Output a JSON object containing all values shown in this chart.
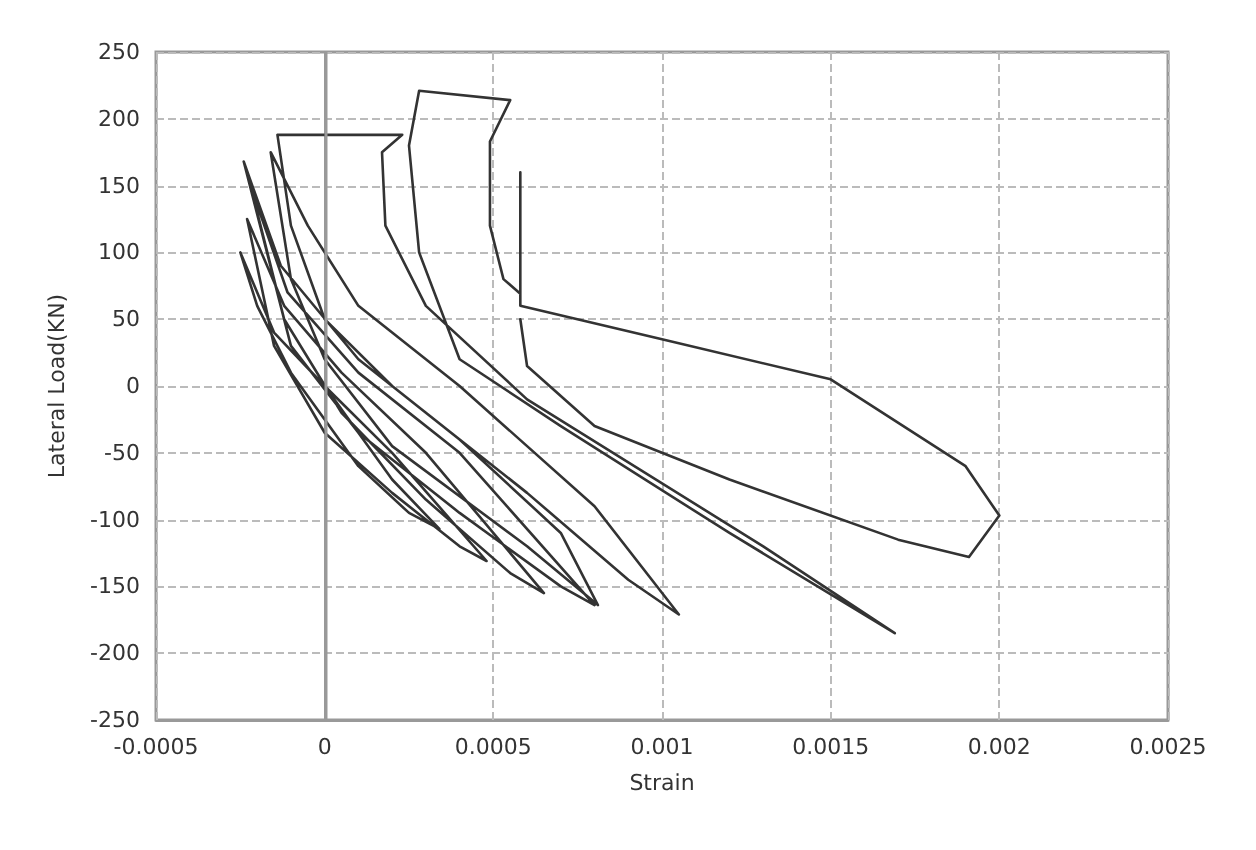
{
  "chart_data": {
    "type": "line",
    "xlabel": "Strain",
    "ylabel": "Lateral Load(KN)",
    "xlim": [
      -0.0005,
      0.0025
    ],
    "xticks": [
      -0.0005,
      0,
      0.0005,
      0.001,
      0.0015,
      0.002,
      0.0025
    ],
    "ylim": [
      -250,
      250
    ],
    "yticks": [
      -250,
      -200,
      -150,
      -100,
      -50,
      0,
      50,
      100,
      150,
      200,
      250
    ],
    "grid": true,
    "marker": "none",
    "line_style": "solid",
    "ref_lines": [
      {
        "axis": "x",
        "value": 0,
        "color": "#999999"
      }
    ],
    "series": [
      {
        "color": "#333333",
        "x": [
          0,
          0.0001,
          0.0002,
          0.00034,
          0.00025,
          0.0001,
          -0.0001,
          -0.0002,
          -0.00025,
          -0.00015,
          0,
          0.0002,
          0.00048,
          0.0004,
          0.0002,
          0,
          -0.00015,
          -0.00023,
          -0.00012,
          5e-05,
          0.0003,
          0.00065,
          0.00055,
          0.0003,
          5e-05,
          -0.00012,
          -0.00022,
          -0.00011,
          0.0001,
          0.0004,
          0.0008,
          0.0007,
          0.0004,
          0.0001,
          -0.0001,
          -0.00024,
          -0.00013,
          0.0001,
          0.0004,
          0.0007,
          0.00081,
          0.0006,
          0.0002,
          0,
          -0.0001,
          -0.00016,
          -5e-05,
          0.0001,
          0.0004,
          0.0008,
          0.00105,
          0.0009,
          0.0006,
          0.0002,
          0,
          -0.0001,
          -0.00014,
          0.00023,
          0.00017,
          0.00018,
          0.0003,
          0.0006,
          0.0013,
          0.00169,
          0.0012,
          0.0007,
          0.0004,
          0.00028,
          0.00025,
          0.00028,
          0.00055,
          0.00049,
          0.00049,
          0.00053,
          0.00058,
          0.00058,
          0.00058,
          0.001,
          0.0015,
          0.0019,
          0.002,
          0.00191,
          0.0017,
          0.0012,
          0.0008,
          0.0006,
          0.00058
        ],
        "values": [
          0,
          -35,
          -70,
          -107,
          -95,
          -60,
          10,
          60,
          100,
          40,
          0,
          -50,
          -131,
          -120,
          -80,
          -35,
          30,
          125,
          60,
          10,
          -50,
          -155,
          -140,
          -85,
          -20,
          50,
          150,
          70,
          10,
          -50,
          -164,
          -150,
          -95,
          -35,
          30,
          168,
          90,
          20,
          -40,
          -110,
          -164,
          -120,
          -45,
          20,
          80,
          175,
          120,
          60,
          0,
          -90,
          -171,
          -145,
          -80,
          0,
          50,
          120,
          188,
          188,
          175,
          120,
          60,
          -10,
          -120,
          -185,
          -110,
          -30,
          20,
          100,
          180,
          221,
          214,
          183,
          120,
          80,
          69,
          160,
          60,
          35,
          5,
          -60,
          -97,
          -128,
          -115,
          -70,
          -30,
          15,
          50
        ]
      }
    ]
  }
}
